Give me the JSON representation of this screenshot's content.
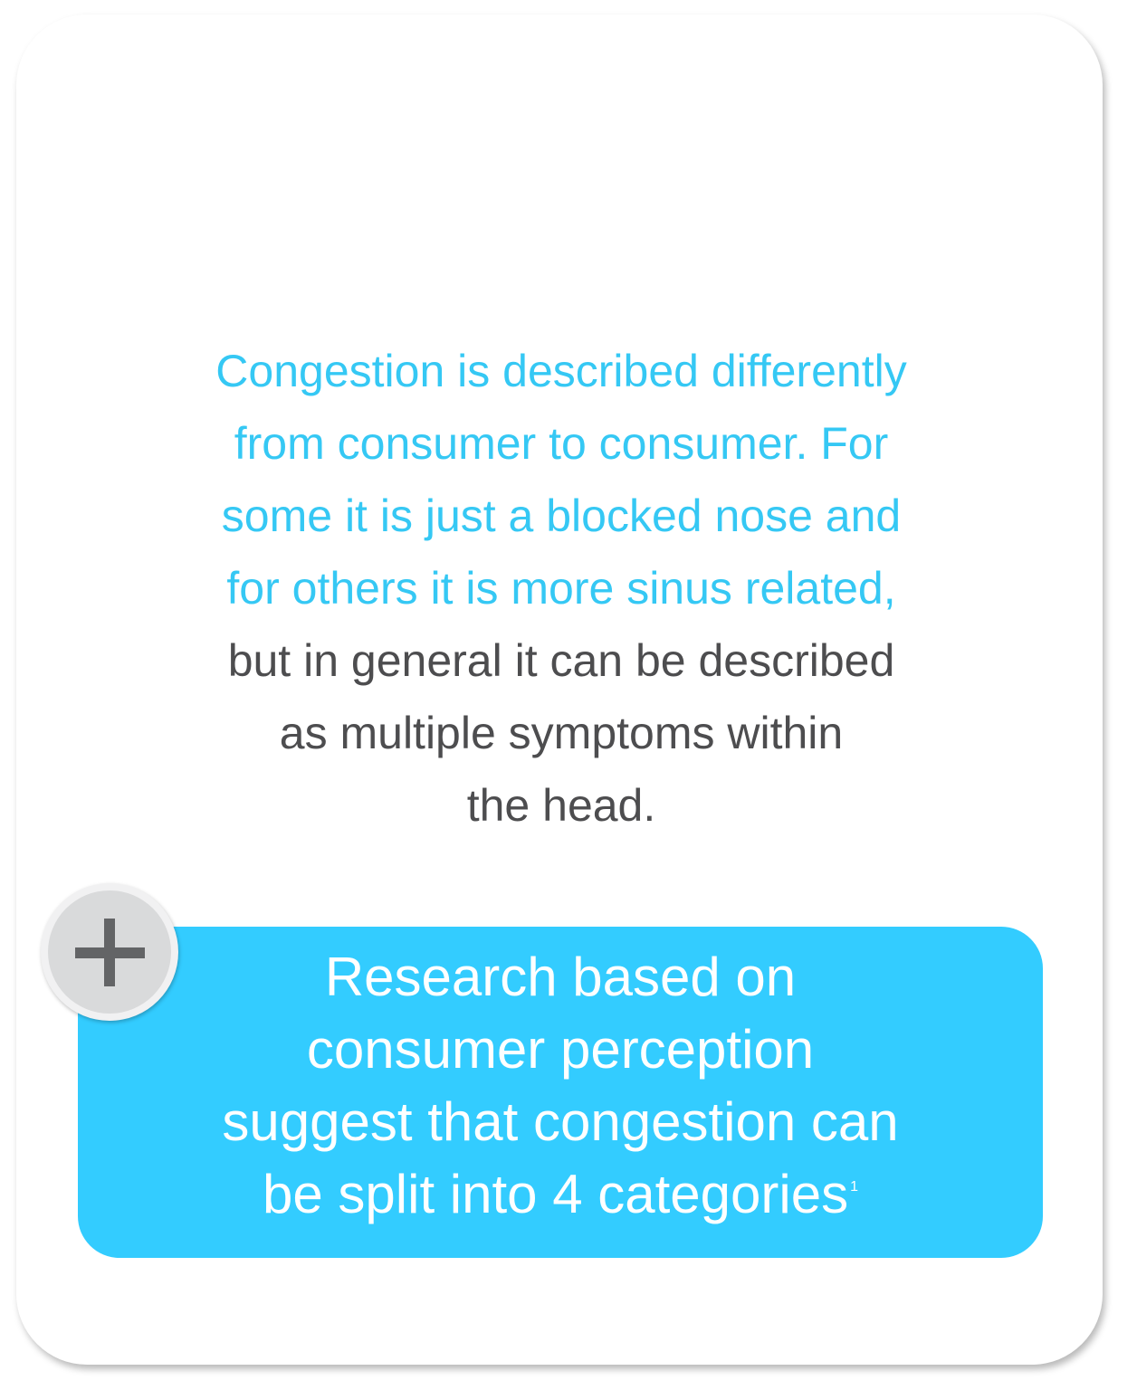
{
  "intro": {
    "blue_lines": [
      "Congestion is described differently",
      "from consumer to consumer. For",
      "some it is just a blocked nose and",
      "for others it is more sinus related,"
    ],
    "grey_lines": [
      "but in general it can be described",
      "as multiple symptoms within",
      "the head."
    ]
  },
  "research": {
    "lines": [
      "Research based on",
      "consumer perception",
      "suggest that congestion can",
      "be split into 4 categories"
    ],
    "footnote": "1"
  },
  "expand_button": {
    "icon": "plus-icon"
  },
  "colors": {
    "accent_blue": "#35c8f4",
    "box_blue": "#33ccff",
    "body_grey": "#4d4d4f",
    "icon_grey": "#636466"
  }
}
